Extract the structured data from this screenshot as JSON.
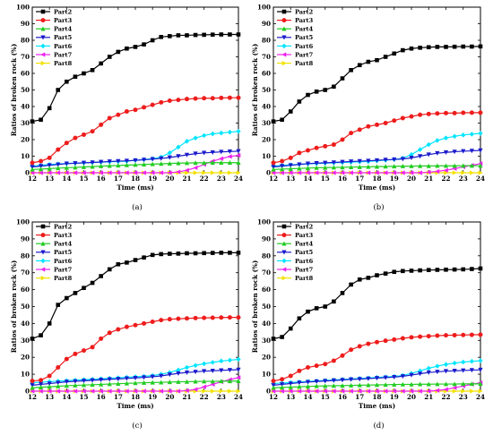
{
  "chart_data": [
    {
      "type": "line",
      "panel_label": "(a)",
      "xlabel": "Time (ms)",
      "ylabel": "Ratios of broken rock (%)",
      "xlim": [
        12,
        24
      ],
      "ylim": [
        0,
        100
      ],
      "x_ticks": [
        12,
        13,
        14,
        15,
        16,
        17,
        18,
        19,
        20,
        21,
        22,
        23,
        24
      ],
      "y_ticks": [
        0,
        10,
        20,
        30,
        40,
        50,
        60,
        70,
        80,
        90,
        100
      ],
      "legend_position": "top-left",
      "grid": false,
      "x": [
        12,
        12.5,
        13,
        13.5,
        14,
        14.5,
        15,
        15.5,
        16,
        16.5,
        17,
        17.5,
        18,
        18.5,
        19,
        19.5,
        20,
        20.5,
        21,
        21.5,
        22,
        22.5,
        23,
        23.5,
        24
      ],
      "series": [
        {
          "name": "Part2",
          "color": "#000000",
          "marker": "square",
          "values": [
            31,
            32,
            39,
            50,
            55,
            58,
            60,
            62,
            66,
            70,
            73,
            75,
            76,
            77.5,
            80,
            82,
            82.5,
            83,
            83,
            83.2,
            83.3,
            83.4,
            83.5,
            83.5,
            83.5
          ]
        },
        {
          "name": "Part3",
          "color": "#ee1c1c",
          "marker": "circle",
          "values": [
            6,
            7,
            9,
            14,
            18,
            21,
            23,
            25,
            29,
            33,
            35,
            37,
            38,
            39.5,
            41,
            42.5,
            43.5,
            44,
            44.5,
            44.8,
            45,
            45,
            45.2,
            45.3,
            45.3
          ]
        },
        {
          "name": "Part4",
          "color": "#22cc22",
          "marker": "triangle-up",
          "values": [
            2,
            2.2,
            2.5,
            2.8,
            3,
            3.2,
            3.5,
            3.7,
            4,
            4.2,
            4.4,
            4.6,
            4.8,
            5,
            5.2,
            5.4,
            5.6,
            5.8,
            5.9,
            6,
            6,
            6.1,
            6.1,
            6.1,
            6.1
          ]
        },
        {
          "name": "Part5",
          "color": "#1a1acc",
          "marker": "triangle-down",
          "values": [
            3.5,
            4,
            4.5,
            5,
            5.5,
            5.7,
            6,
            6.2,
            6.5,
            6.8,
            7,
            7.2,
            7.5,
            7.8,
            8.2,
            8.6,
            9.2,
            10,
            10.8,
            11.5,
            12,
            12.3,
            12.6,
            12.8,
            13
          ]
        },
        {
          "name": "Part6",
          "color": "#00e5ff",
          "marker": "diamond",
          "values": [
            4,
            4.5,
            5,
            5.3,
            5.6,
            5.8,
            6,
            6.2,
            6.4,
            6.6,
            6.8,
            7,
            7.5,
            8,
            8.5,
            9.5,
            12,
            15.5,
            19,
            21,
            22.5,
            23.5,
            24,
            24.5,
            25
          ]
        },
        {
          "name": "Part7",
          "color": "#ee22ee",
          "marker": "triangle-left",
          "values": [
            0,
            0,
            0,
            0,
            0,
            0,
            0,
            0,
            0,
            0,
            0,
            0,
            0,
            0,
            0,
            0,
            0,
            0.5,
            1.5,
            3,
            5,
            7,
            8.5,
            9.8,
            10.5
          ]
        },
        {
          "name": "Part8",
          "color": "#f2e100",
          "marker": "triangle-right",
          "values": [
            0,
            0,
            0,
            0,
            0,
            0,
            0,
            0,
            0,
            0,
            0,
            0,
            0,
            0,
            0,
            0,
            0,
            0,
            0,
            0,
            0,
            0,
            0,
            0,
            0
          ]
        }
      ]
    },
    {
      "type": "line",
      "panel_label": "(b)",
      "xlabel": "Time (ms)",
      "ylabel": "Ratios of broken rock (%)",
      "xlim": [
        12,
        24
      ],
      "ylim": [
        0,
        100
      ],
      "x_ticks": [
        12,
        13,
        14,
        15,
        16,
        17,
        18,
        19,
        20,
        21,
        22,
        23,
        24
      ],
      "y_ticks": [
        0,
        10,
        20,
        30,
        40,
        50,
        60,
        70,
        80,
        90,
        100
      ],
      "legend_position": "top-left",
      "grid": false,
      "x": [
        12,
        12.5,
        13,
        13.5,
        14,
        14.5,
        15,
        15.5,
        16,
        16.5,
        17,
        17.5,
        18,
        18.5,
        19,
        19.5,
        20,
        20.5,
        21,
        21.5,
        22,
        22.5,
        23,
        23.5,
        24
      ],
      "series": [
        {
          "name": "Part2",
          "color": "#000000",
          "marker": "square",
          "values": [
            31,
            32,
            37,
            43,
            47,
            49,
            50,
            52,
            57,
            62,
            65,
            67,
            68,
            70,
            72,
            74,
            75,
            75.5,
            75.8,
            76,
            76,
            76.1,
            76.2,
            76.2,
            76.3
          ]
        },
        {
          "name": "Part3",
          "color": "#ee1c1c",
          "marker": "circle",
          "values": [
            6,
            7,
            9,
            12,
            13.5,
            15,
            16,
            17,
            20,
            24,
            26,
            28,
            29,
            30,
            31.5,
            33,
            34,
            35,
            35.5,
            35.8,
            36,
            36,
            36.2,
            36.3,
            36.3
          ]
        },
        {
          "name": "Part4",
          "color": "#22cc22",
          "marker": "triangle-up",
          "values": [
            2,
            2.2,
            2.4,
            2.6,
            2.8,
            3,
            3.1,
            3.2,
            3.3,
            3.4,
            3.5,
            3.6,
            3.7,
            3.8,
            3.9,
            4,
            4,
            4.1,
            4.1,
            4.2,
            4.2,
            4.2,
            4.3,
            4.3,
            4.3
          ]
        },
        {
          "name": "Part5",
          "color": "#1a1acc",
          "marker": "triangle-down",
          "values": [
            3.5,
            4,
            4.5,
            5,
            5.5,
            5.8,
            6,
            6.2,
            6.5,
            6.8,
            7,
            7.2,
            7.5,
            7.8,
            8,
            8.3,
            9,
            10,
            11,
            11.8,
            12.3,
            12.7,
            13,
            13.2,
            13.5
          ]
        },
        {
          "name": "Part6",
          "color": "#00e5ff",
          "marker": "diamond",
          "values": [
            4,
            4.4,
            4.8,
            5.1,
            5.4,
            5.6,
            5.8,
            6,
            6.2,
            6.4,
            6.6,
            6.8,
            7.2,
            7.6,
            8,
            8.8,
            11,
            14,
            17,
            19.5,
            21,
            22,
            22.8,
            23.3,
            23.8
          ]
        },
        {
          "name": "Part7",
          "color": "#ee22ee",
          "marker": "triangle-left",
          "values": [
            0,
            0,
            0,
            0,
            0,
            0,
            0,
            0,
            0,
            0,
            0,
            0,
            0,
            0,
            0,
            0,
            0,
            0,
            0.3,
            0.8,
            1.5,
            2.5,
            3.5,
            4.5,
            5.5
          ]
        },
        {
          "name": "Part8",
          "color": "#f2e100",
          "marker": "triangle-right",
          "values": [
            0,
            0,
            0,
            0,
            0,
            0,
            0,
            0,
            0,
            0,
            0,
            0,
            0,
            0,
            0,
            0,
            0,
            0,
            0,
            0,
            0,
            0,
            0,
            0,
            0
          ]
        }
      ]
    },
    {
      "type": "line",
      "panel_label": "(c)",
      "xlabel": "Time (ms)",
      "ylabel": "Ratios of broken rock (%)",
      "xlim": [
        12,
        24
      ],
      "ylim": [
        0,
        100
      ],
      "x_ticks": [
        12,
        13,
        14,
        15,
        16,
        17,
        18,
        19,
        20,
        21,
        22,
        23,
        24
      ],
      "y_ticks": [
        0,
        10,
        20,
        30,
        40,
        50,
        60,
        70,
        80,
        90,
        100
      ],
      "legend_position": "top-left",
      "grid": false,
      "x": [
        12,
        12.5,
        13,
        13.5,
        14,
        14.5,
        15,
        15.5,
        16,
        16.5,
        17,
        17.5,
        18,
        18.5,
        19,
        19.5,
        20,
        20.5,
        21,
        21.5,
        22,
        22.5,
        23,
        23.5,
        24
      ],
      "series": [
        {
          "name": "Part2",
          "color": "#000000",
          "marker": "square",
          "values": [
            31,
            33,
            40,
            51,
            55,
            58,
            61,
            64,
            68,
            72,
            75,
            76,
            77.5,
            79,
            80.5,
            81,
            81.2,
            81.3,
            81.5,
            81.5,
            81.6,
            81.7,
            81.8,
            81.8,
            81.8
          ]
        },
        {
          "name": "Part3",
          "color": "#ee1c1c",
          "marker": "circle",
          "values": [
            6,
            6.5,
            9,
            14,
            19,
            22,
            24,
            26,
            31,
            34.5,
            36.5,
            38,
            39,
            40,
            41,
            42,
            42.5,
            42.8,
            43,
            43.2,
            43.3,
            43.4,
            43.5,
            43.6,
            43.6
          ]
        },
        {
          "name": "Part4",
          "color": "#22cc22",
          "marker": "triangle-up",
          "values": [
            2,
            2.3,
            2.6,
            2.9,
            3.2,
            3.4,
            3.6,
            3.8,
            4,
            4.2,
            4.4,
            4.6,
            4.8,
            5,
            5.1,
            5.2,
            5.4,
            5.5,
            5.6,
            5.7,
            5.8,
            5.8,
            5.9,
            5.9,
            6
          ]
        },
        {
          "name": "Part5",
          "color": "#1a1acc",
          "marker": "triangle-down",
          "values": [
            3.5,
            4,
            4.5,
            5,
            5.5,
            5.8,
            6.1,
            6.4,
            6.7,
            7,
            7.2,
            7.5,
            7.8,
            8.1,
            8.5,
            9,
            9.8,
            10.5,
            11,
            11.4,
            11.8,
            12,
            12.3,
            12.5,
            12.7
          ]
        },
        {
          "name": "Part6",
          "color": "#00e5ff",
          "marker": "diamond",
          "values": [
            5,
            5.3,
            5.6,
            5.9,
            6.2,
            6.5,
            6.8,
            7,
            7.3,
            7.6,
            7.9,
            8.2,
            8.5,
            8.8,
            9.2,
            10,
            11,
            12.5,
            14,
            15.2,
            16.2,
            17,
            17.8,
            18.3,
            18.8
          ]
        },
        {
          "name": "Part7",
          "color": "#ee22ee",
          "marker": "triangle-left",
          "values": [
            0,
            0,
            0,
            0,
            0,
            0,
            0,
            0,
            0,
            0,
            0,
            0,
            0,
            0,
            0,
            0,
            0,
            0,
            0.3,
            1,
            2.5,
            4,
            5.5,
            6.8,
            8
          ]
        },
        {
          "name": "Part8",
          "color": "#f2e100",
          "marker": "triangle-right",
          "values": [
            0,
            0,
            0,
            0,
            0,
            0,
            0,
            0,
            0,
            0,
            0,
            0,
            0,
            0,
            0,
            0,
            0,
            0,
            0,
            0,
            0,
            0,
            0,
            0,
            0
          ]
        }
      ]
    },
    {
      "type": "line",
      "panel_label": "(d)",
      "xlabel": "Time (ms)",
      "ylabel": "Ratios of broken rock (%)",
      "xlim": [
        12,
        24
      ],
      "ylim": [
        0,
        100
      ],
      "x_ticks": [
        12,
        13,
        14,
        15,
        16,
        17,
        18,
        19,
        20,
        21,
        22,
        23,
        24
      ],
      "y_ticks": [
        0,
        10,
        20,
        30,
        40,
        50,
        60,
        70,
        80,
        90,
        100
      ],
      "legend_position": "top-left",
      "grid": false,
      "x": [
        12,
        12.5,
        13,
        13.5,
        14,
        14.5,
        15,
        15.5,
        16,
        16.5,
        17,
        17.5,
        18,
        18.5,
        19,
        19.5,
        20,
        20.5,
        21,
        21.5,
        22,
        22.5,
        23,
        23.5,
        24
      ],
      "series": [
        {
          "name": "Part2",
          "color": "#000000",
          "marker": "square",
          "values": [
            31,
            32,
            37,
            43,
            47,
            49,
            50,
            53,
            58,
            63,
            66,
            67,
            68.5,
            69.5,
            70.5,
            71,
            71.2,
            71.4,
            71.6,
            71.7,
            71.8,
            71.9,
            72,
            72.2,
            72.5
          ]
        },
        {
          "name": "Part3",
          "color": "#ee1c1c",
          "marker": "circle",
          "values": [
            6,
            7,
            9,
            12,
            14,
            15,
            16,
            18,
            21,
            24.5,
            26.5,
            28,
            29,
            29.8,
            30.5,
            31.2,
            31.8,
            32.2,
            32.5,
            32.8,
            33,
            33.1,
            33.2,
            33.3,
            33.4
          ]
        },
        {
          "name": "Part4",
          "color": "#22cc22",
          "marker": "triangle-up",
          "values": [
            2,
            2.2,
            2.4,
            2.6,
            2.8,
            3,
            3.1,
            3.2,
            3.3,
            3.4,
            3.5,
            3.6,
            3.7,
            3.8,
            3.9,
            4,
            4,
            4.1,
            4.1,
            4.2,
            4.2,
            4.2,
            4.3,
            4.3,
            4.3
          ]
        },
        {
          "name": "Part5",
          "color": "#1a1acc",
          "marker": "triangle-down",
          "values": [
            3.5,
            4,
            4.5,
            5,
            5.4,
            5.7,
            6,
            6.3,
            6.6,
            6.9,
            7.1,
            7.4,
            7.7,
            8,
            8.3,
            8.8,
            9.5,
            10.3,
            11,
            11.4,
            11.8,
            12,
            12.2,
            12.4,
            12.6
          ]
        },
        {
          "name": "Part6",
          "color": "#00e5ff",
          "marker": "diamond",
          "values": [
            4.5,
            4.8,
            5.1,
            5.4,
            5.7,
            6,
            6.3,
            6.6,
            6.9,
            7.2,
            7.5,
            7.8,
            8.1,
            8.4,
            8.7,
            9.3,
            10.5,
            12,
            13.5,
            14.8,
            15.8,
            16.6,
            17.2,
            17.6,
            18
          ]
        },
        {
          "name": "Part7",
          "color": "#ee22ee",
          "marker": "triangle-left",
          "values": [
            0,
            0,
            0,
            0,
            0,
            0,
            0,
            0,
            0,
            0,
            0,
            0,
            0,
            0,
            0,
            0,
            0,
            0,
            0,
            0.4,
            1,
            2,
            3,
            4,
            5
          ]
        },
        {
          "name": "Part8",
          "color": "#f2e100",
          "marker": "triangle-right",
          "values": [
            0,
            0,
            0,
            0,
            0,
            0,
            0,
            0,
            0,
            0,
            0,
            0,
            0,
            0,
            0,
            0,
            0,
            0,
            0,
            0,
            0,
            0,
            0,
            0,
            0
          ]
        }
      ]
    }
  ]
}
